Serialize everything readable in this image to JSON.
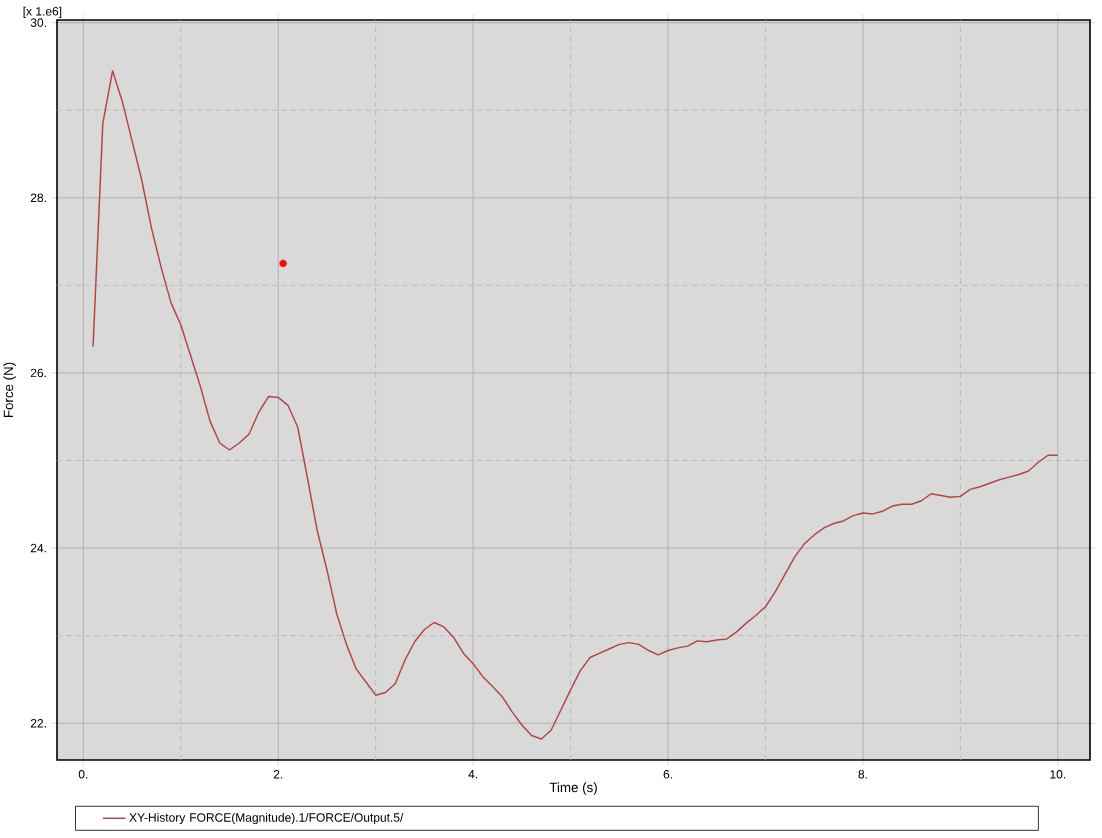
{
  "chart_data": {
    "type": "line",
    "xlabel": "Time (s)",
    "ylabel": "Force (N)",
    "annotations": [
      "[x 1.e6]"
    ],
    "xlim": [
      -0.27,
      10.33
    ],
    "ylim": [
      21.58,
      30.03
    ],
    "xticks": [
      {
        "value": 0,
        "label": "0."
      },
      {
        "value": 1,
        "label": null
      },
      {
        "value": 2,
        "label": "2."
      },
      {
        "value": 3,
        "label": null
      },
      {
        "value": 4,
        "label": "4."
      },
      {
        "value": 5,
        "label": null
      },
      {
        "value": 6,
        "label": "6."
      },
      {
        "value": 7,
        "label": null
      },
      {
        "value": 8,
        "label": "8."
      },
      {
        "value": 9,
        "label": null
      },
      {
        "value": 10,
        "label": "10."
      }
    ],
    "yticks": [
      {
        "value": 22,
        "label": "22."
      },
      {
        "value": 23,
        "label": null
      },
      {
        "value": 24,
        "label": "24."
      },
      {
        "value": 25,
        "label": null
      },
      {
        "value": 26,
        "label": "26."
      },
      {
        "value": 27,
        "label": null
      },
      {
        "value": 28,
        "label": "28."
      },
      {
        "value": 29,
        "label": null
      },
      {
        "value": 30,
        "label": "30."
      }
    ],
    "grid": true,
    "legend": "bottom",
    "series": [
      {
        "name": "XY-History FORCE(Magnitude).1/FORCE/Output.5/",
        "color": "#b54545",
        "x": [
          0.1,
          0.2,
          0.3,
          0.4,
          0.5,
          0.6,
          0.7,
          0.8,
          0.9,
          1.0,
          1.1,
          1.2,
          1.3,
          1.4,
          1.5,
          1.6,
          1.7,
          1.8,
          1.9,
          2.0,
          2.1,
          2.2,
          2.3,
          2.4,
          2.5,
          2.6,
          2.7,
          2.8,
          2.9,
          3.0,
          3.1,
          3.2,
          3.3,
          3.4,
          3.5,
          3.6,
          3.7,
          3.8,
          3.9,
          4.0,
          4.1,
          4.2,
          4.3,
          4.4,
          4.5,
          4.6,
          4.7,
          4.8,
          4.9,
          5.0,
          5.1,
          5.2,
          5.3,
          5.4,
          5.5,
          5.6,
          5.7,
          5.8,
          5.9,
          6.0,
          6.1,
          6.2,
          6.3,
          6.4,
          6.5,
          6.6,
          6.7,
          6.8,
          6.9,
          7.0,
          7.1,
          7.2,
          7.3,
          7.4,
          7.5,
          7.6,
          7.7,
          7.8,
          7.9,
          8.0,
          8.1,
          8.2,
          8.3,
          8.4,
          8.5,
          8.6,
          8.7,
          8.8,
          8.9,
          9.0,
          9.1,
          9.2,
          9.3,
          9.4,
          9.5,
          9.6,
          9.7,
          9.8,
          9.9,
          10.0
        ],
        "values": [
          26.3,
          28.85,
          29.45,
          29.1,
          28.65,
          28.2,
          27.65,
          27.2,
          26.8,
          26.55,
          26.2,
          25.85,
          25.45,
          25.2,
          25.12,
          25.2,
          25.3,
          25.55,
          25.73,
          25.72,
          25.63,
          25.38,
          24.8,
          24.2,
          23.75,
          23.25,
          22.9,
          22.62,
          22.47,
          22.32,
          22.35,
          22.45,
          22.72,
          22.93,
          23.07,
          23.15,
          23.1,
          22.98,
          22.8,
          22.68,
          22.53,
          22.42,
          22.3,
          22.13,
          21.98,
          21.86,
          21.82,
          21.92,
          22.15,
          22.38,
          22.6,
          22.75,
          22.8,
          22.85,
          22.9,
          22.92,
          22.9,
          22.83,
          22.78,
          22.83,
          22.86,
          22.88,
          22.94,
          22.93,
          22.95,
          22.96,
          23.04,
          23.14,
          23.23,
          23.33,
          23.5,
          23.7,
          23.9,
          24.05,
          24.15,
          24.23,
          24.28,
          24.31,
          24.37,
          24.4,
          24.39,
          24.42,
          24.48,
          24.5,
          24.5,
          24.54,
          24.62,
          24.6,
          24.58,
          24.59,
          24.67,
          24.7,
          24.74,
          24.78,
          24.81,
          24.84,
          24.88,
          24.98,
          25.06,
          25.06
        ]
      },
      {
        "type": "scatter",
        "color": "#ee1111",
        "x": [
          2.05
        ],
        "values": [
          27.25
        ]
      }
    ]
  }
}
